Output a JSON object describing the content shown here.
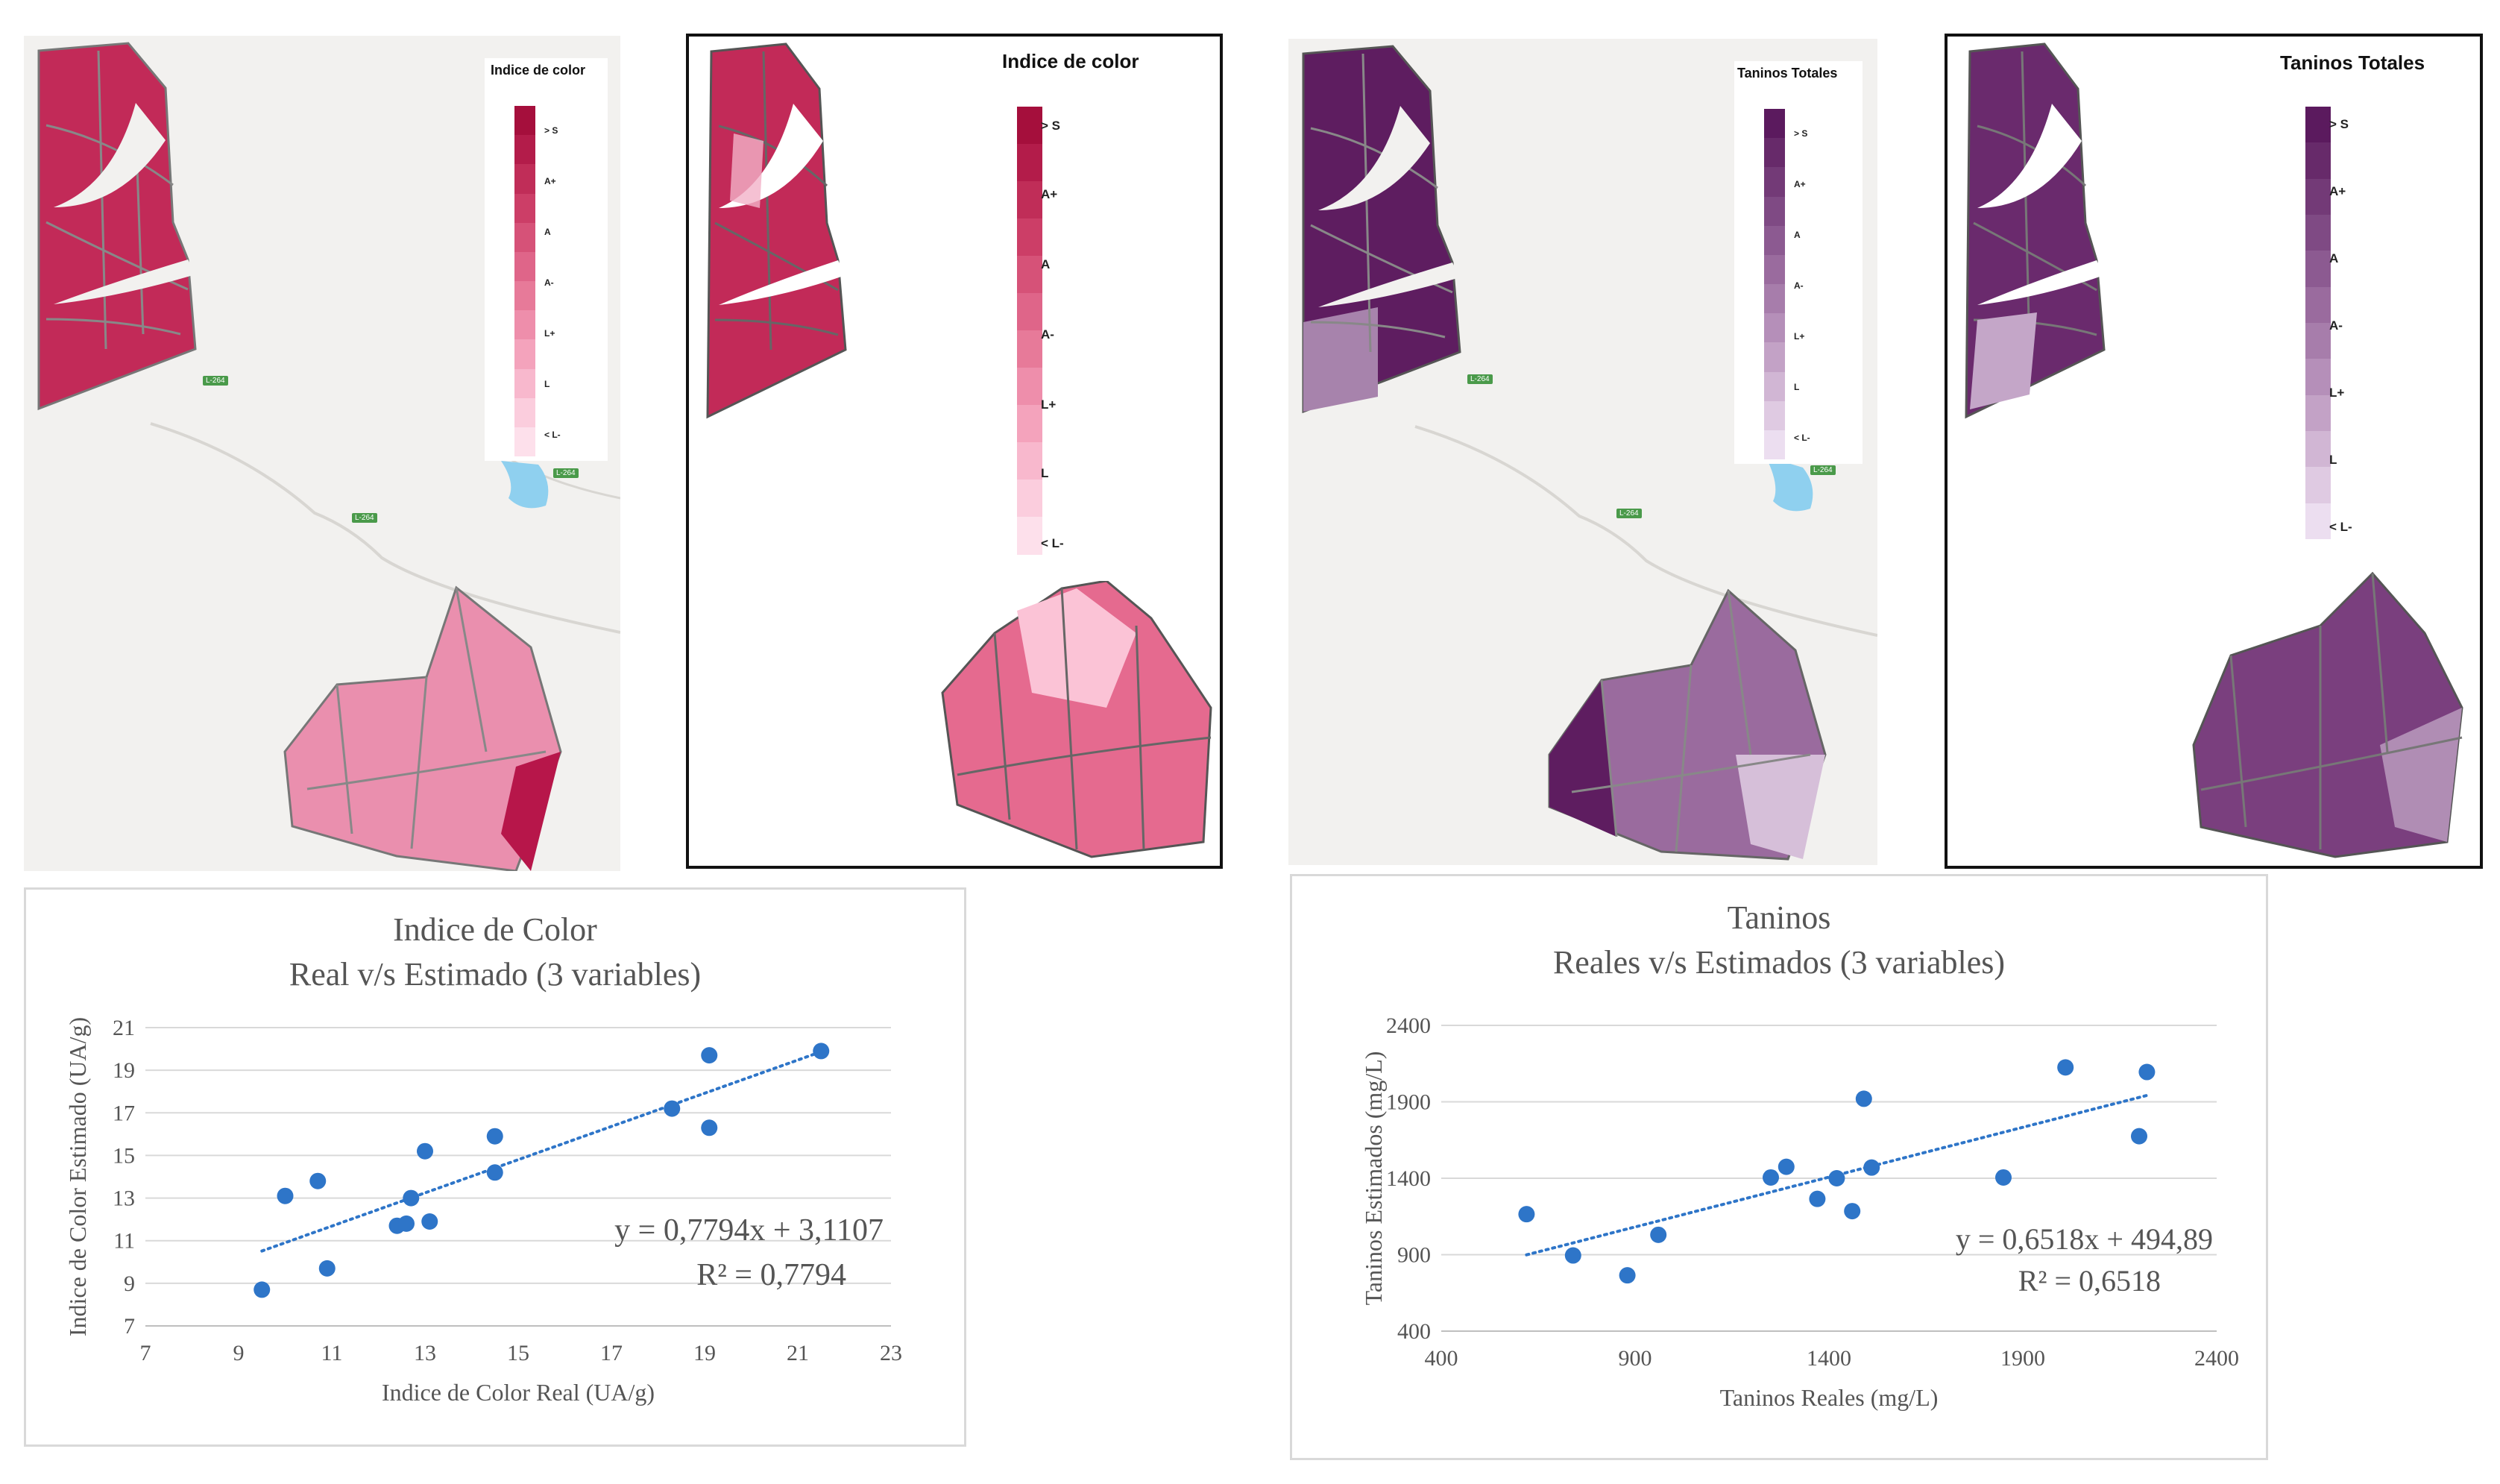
{
  "maps": [
    {
      "id": "color-interp",
      "legend_title": "Indice de color",
      "legend_labels": [
        "> S",
        "A+",
        "A",
        "A-",
        "L+",
        "L",
        "< L-"
      ],
      "colors": [
        "#a50f3c",
        "#b31c4a",
        "#c02d58",
        "#cc3e67",
        "#d65278",
        "#df6589",
        "#e77a99",
        "#ee8eab",
        "#f4a3bc",
        "#f8b8cd",
        "#fbcddd",
        "#fde0eb"
      ],
      "road_labels": [
        "L-264",
        "L-264",
        "L-264"
      ]
    },
    {
      "id": "color-pixel",
      "legend_title": "Indice de color",
      "legend_labels": [
        "> S",
        "A+",
        "A",
        "A-",
        "L+",
        "L",
        "< L-"
      ],
      "colors": [
        "#a50f3c",
        "#b31c4a",
        "#c02d58",
        "#cc3e67",
        "#d65278",
        "#df6589",
        "#e77a99",
        "#ee8eab",
        "#f4a3bc",
        "#f8b8cd",
        "#fbcddd",
        "#fde0eb"
      ]
    },
    {
      "id": "taninos-interp",
      "legend_title": "Taninos Totales",
      "legend_labels": [
        "> S",
        "A+",
        "A",
        "A-",
        "L+",
        "L",
        "< L-"
      ],
      "colors": [
        "#5b1a5e",
        "#672a6a",
        "#733a77",
        "#7f4a84",
        "#8c5a91",
        "#9a6b9e",
        "#a77dab",
        "#b58fb9",
        "#c3a2c6",
        "#d1b6d4",
        "#dfcae2",
        "#ecdef0"
      ],
      "road_labels": [
        "L-264",
        "L-264",
        "L-264"
      ]
    },
    {
      "id": "taninos-pixel",
      "legend_title": "Taninos Totales",
      "legend_labels": [
        "> S",
        "A+",
        "A",
        "A-",
        "L+",
        "L",
        "< L-"
      ],
      "colors": [
        "#5b1a5e",
        "#672a6a",
        "#733a77",
        "#7f4a84",
        "#8c5a91",
        "#9a6b9e",
        "#a77dab",
        "#b58fb9",
        "#c3a2c6",
        "#d1b6d4",
        "#dfcae2",
        "#ecdef0"
      ]
    }
  ],
  "chart_data": [
    {
      "type": "scatter",
      "title": "Indice de Color",
      "subtitle": "Real v/s Estimado (3 variables)",
      "xlabel": "Indice de Color Real (UA/g)",
      "ylabel": "Indice de Color Estimado (UA/g)",
      "xlim": [
        7,
        23
      ],
      "ylim": [
        7,
        21
      ],
      "xticks": [
        "7",
        "9",
        "11",
        "13",
        "15",
        "17",
        "19",
        "21",
        "23"
      ],
      "yticks": [
        "7",
        "9",
        "11",
        "13",
        "15",
        "17",
        "19",
        "21"
      ],
      "points": [
        [
          9.5,
          8.7
        ],
        [
          10.0,
          13.1
        ],
        [
          10.7,
          13.8
        ],
        [
          10.9,
          9.7
        ],
        [
          12.4,
          11.7
        ],
        [
          12.6,
          11.8
        ],
        [
          12.7,
          13.0
        ],
        [
          13.0,
          15.2
        ],
        [
          13.1,
          11.9
        ],
        [
          14.5,
          15.9
        ],
        [
          14.5,
          14.2
        ],
        [
          18.3,
          17.2
        ],
        [
          19.1,
          19.7
        ],
        [
          19.1,
          16.3
        ],
        [
          21.5,
          19.9
        ]
      ],
      "trend": {
        "slope": 0.7794,
        "intercept": 3.1107,
        "x_from": 9.5,
        "x_to": 21.5
      },
      "equation": "y = 0,7794x + 3,1107",
      "r2": "R² = 0,7794",
      "point_color": "#2e75c8",
      "trend_color": "#2e75c8"
    },
    {
      "type": "scatter",
      "title": "Taninos",
      "subtitle": "Reales v/s Estimados (3 variables)",
      "xlabel": "Taninos Reales (mg/L)",
      "ylabel": "Taninos Estimados (mg/L)",
      "xlim": [
        400,
        2400
      ],
      "ylim": [
        400,
        2400
      ],
      "xticks": [
        "400",
        "900",
        "1400",
        "1900",
        "2400"
      ],
      "yticks": [
        "400",
        "900",
        "1400",
        "1900",
        "2400"
      ],
      "points": [
        [
          620,
          1165
        ],
        [
          740,
          895
        ],
        [
          880,
          765
        ],
        [
          960,
          1030
        ],
        [
          1250,
          1405
        ],
        [
          1290,
          1475
        ],
        [
          1370,
          1265
        ],
        [
          1420,
          1400
        ],
        [
          1460,
          1185
        ],
        [
          1490,
          1920
        ],
        [
          1510,
          1470
        ],
        [
          1850,
          1405
        ],
        [
          2010,
          2125
        ],
        [
          2200,
          1675
        ],
        [
          2220,
          2095
        ]
      ],
      "trend": {
        "slope": 0.6518,
        "intercept": 494.89,
        "x_from": 620,
        "x_to": 2220
      },
      "equation": "y = 0,6518x + 494,89",
      "r2": "R² = 0,6518",
      "point_color": "#2e75c8",
      "trend_color": "#2e75c8"
    }
  ]
}
